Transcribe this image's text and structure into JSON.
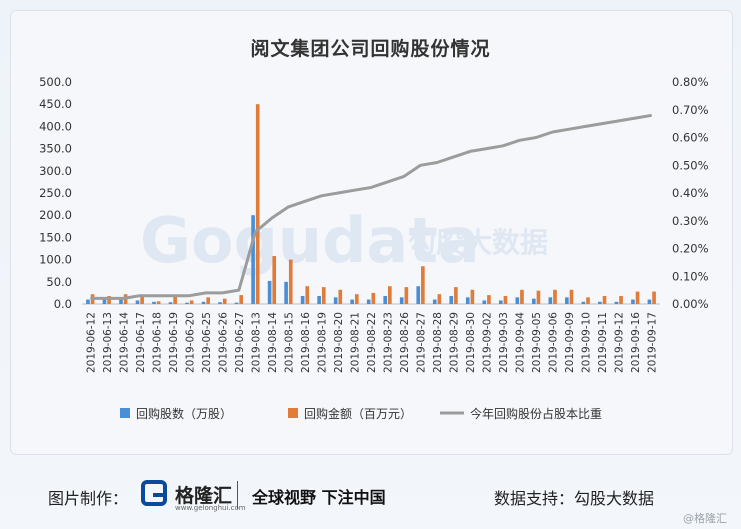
{
  "title": "阅文集团公司回购股份情况",
  "footer": {
    "made_by_label": "图片制作：",
    "logo_text": "格隆汇",
    "logo_url_text": "www.gelonghui.com",
    "slogan": "全球视野 下注中国",
    "data_support": "数据支持：勾股大数据"
  },
  "watermark": {
    "brand_en": "Gogudata",
    "brand_cn": "勾股大数据",
    "corner": "@格隆汇"
  },
  "colors": {
    "shares": "#4a8fd6",
    "amount": "#e07b39",
    "ratio": "#9c9c9c"
  },
  "chart_data": {
    "type": "bar",
    "title": "阅文集团公司回购股份情况",
    "categories": [
      "2019-06-12",
      "2019-06-13",
      "2019-06-14",
      "2019-06-17",
      "2019-06-18",
      "2019-06-19",
      "2019-06-20",
      "2019-06-25",
      "2019-06-26",
      "2019-06-27",
      "2019-08-13",
      "2019-08-14",
      "2019-08-15",
      "2019-08-16",
      "2019-08-19",
      "2019-08-20",
      "2019-08-21",
      "2019-08-22",
      "2019-08-23",
      "2019-08-26",
      "2019-08-27",
      "2019-08-28",
      "2019-08-29",
      "2019-08-30",
      "2019-09-02",
      "2019-09-03",
      "2019-09-04",
      "2019-09-05",
      "2019-09-06",
      "2019-09-09",
      "2019-09-10",
      "2019-09-11",
      "2019-09-12",
      "2019-09-16",
      "2019-09-17"
    ],
    "series": [
      {
        "name": "回购股数（万股）",
        "kind": "bar",
        "axis": "left",
        "values": [
          10,
          12,
          10,
          8,
          5,
          4,
          3,
          5,
          4,
          3,
          200,
          52,
          50,
          18,
          18,
          15,
          10,
          10,
          18,
          15,
          40,
          10,
          18,
          15,
          8,
          8,
          15,
          12,
          15,
          15,
          5,
          5,
          5,
          10,
          10
        ]
      },
      {
        "name": "回购金额（百万元）",
        "kind": "bar",
        "axis": "left",
        "values": [
          22,
          18,
          22,
          18,
          6,
          18,
          8,
          15,
          12,
          20,
          450,
          108,
          100,
          40,
          38,
          32,
          22,
          25,
          40,
          38,
          85,
          22,
          38,
          32,
          20,
          18,
          32,
          30,
          32,
          32,
          15,
          18,
          18,
          28,
          28
        ]
      },
      {
        "name": "今年回购股份占股本比重",
        "kind": "line",
        "axis": "right",
        "values": [
          0.0002,
          0.0002,
          0.0002,
          0.0003,
          0.0003,
          0.0003,
          0.0003,
          0.0004,
          0.0004,
          0.0005,
          0.0026,
          0.0031,
          0.0035,
          0.0037,
          0.0039,
          0.004,
          0.0041,
          0.0042,
          0.0044,
          0.0046,
          0.005,
          0.0051,
          0.0053,
          0.0055,
          0.0056,
          0.0057,
          0.0059,
          0.006,
          0.0062,
          0.0063,
          0.0064,
          0.0065,
          0.0066,
          0.0067,
          0.0068
        ]
      }
    ],
    "y_left": {
      "range": [
        0,
        500
      ],
      "step": 50,
      "ticks": [
        "0.0",
        "50.0",
        "100.0",
        "150.0",
        "200.0",
        "250.0",
        "300.0",
        "350.0",
        "400.0",
        "450.0",
        "500.0"
      ]
    },
    "y_right": {
      "range": [
        0,
        0.008
      ],
      "step": 0.001,
      "ticks": [
        "0.00%",
        "0.10%",
        "0.20%",
        "0.30%",
        "0.40%",
        "0.50%",
        "0.60%",
        "0.70%",
        "0.80%"
      ]
    },
    "grid": false,
    "legend_position": "bottom"
  }
}
